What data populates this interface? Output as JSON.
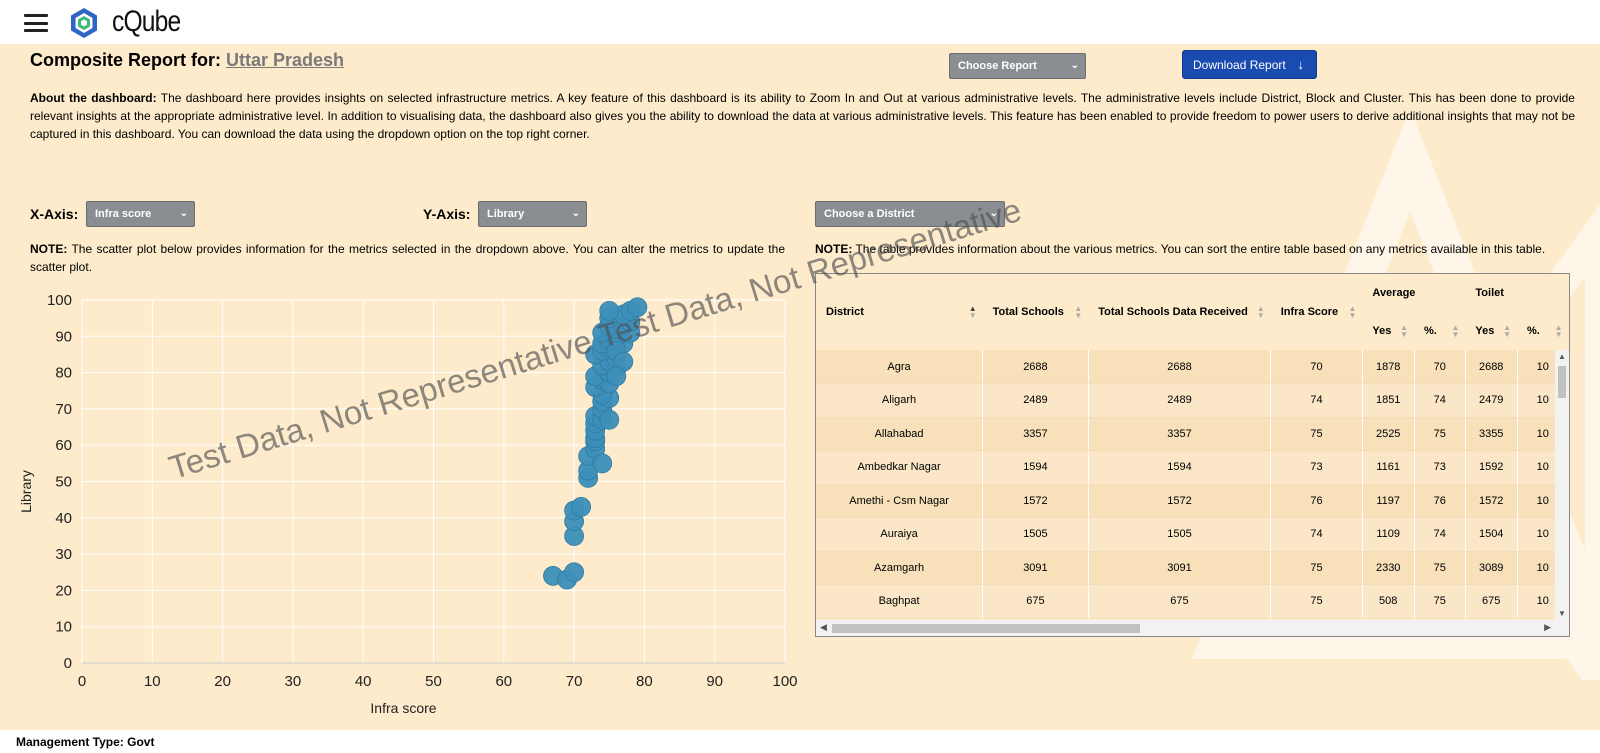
{
  "app": {
    "brand": "cQube"
  },
  "header": {
    "title_prefix": "Composite Report for:",
    "state": "Uttar Pradesh",
    "choose_report": "Choose Report",
    "download_label": "Download Report"
  },
  "about": {
    "label": "About the dashboard:",
    "text": "The dashboard here provides insights on selected infrastructure metrics. A key feature of this dashboard is its ability to Zoom In and Out at various administrative levels. The administrative levels include District, Block and Cluster. This has been done to provide relevant insights at the appropriate administrative level. In addition to visualising data, the dashboard also gives you the ability to download the data at various administrative levels. This feature has been enabled to provide freedom to power users to derive additional insights that may not be captured in this dashboard. You can download the data using the dropdown option on the top right corner."
  },
  "controls": {
    "x_axis_label": "X-Axis:",
    "x_axis_value": "Infra score",
    "y_axis_label": "Y-Axis:",
    "y_axis_value": "Library",
    "district_select": "Choose a District"
  },
  "notes": {
    "note_label": "NOTE:",
    "scatter_note": "The scatter plot below provides information for the metrics selected in the dropdown above. You can alter the metrics to update the scatter plot.",
    "table_note": "The table provides information about the various metrics. You can sort the entire table based on any metrics available in this table."
  },
  "watermark": "Test Data, Not Representative  Test Data, Not Representative",
  "chart_data": {
    "type": "scatter",
    "xlabel": "Infra score",
    "ylabel": "Library",
    "xlim": [
      0,
      100
    ],
    "ylim": [
      0,
      100
    ],
    "xticks": [
      0,
      10,
      20,
      30,
      40,
      50,
      60,
      70,
      80,
      90,
      100
    ],
    "yticks": [
      0,
      10,
      20,
      30,
      40,
      50,
      60,
      70,
      80,
      90,
      100
    ],
    "grid": true,
    "color": "#3d8fb8",
    "points": [
      [
        67,
        24
      ],
      [
        69,
        23
      ],
      [
        70,
        25
      ],
      [
        70,
        35
      ],
      [
        70,
        39
      ],
      [
        70,
        42
      ],
      [
        71,
        43
      ],
      [
        72,
        51
      ],
      [
        72,
        53
      ],
      [
        72,
        57
      ],
      [
        73,
        59
      ],
      [
        73,
        61
      ],
      [
        73,
        62
      ],
      [
        74,
        55
      ],
      [
        73,
        64
      ],
      [
        73,
        66
      ],
      [
        73,
        68
      ],
      [
        74,
        67
      ],
      [
        74,
        70
      ],
      [
        75,
        67
      ],
      [
        74,
        72
      ],
      [
        75,
        73
      ],
      [
        74,
        74
      ],
      [
        73,
        76
      ],
      [
        74,
        78
      ],
      [
        75,
        77
      ],
      [
        73,
        79
      ],
      [
        75,
        80
      ],
      [
        76,
        81
      ],
      [
        74,
        82
      ],
      [
        75,
        83
      ],
      [
        76,
        84
      ],
      [
        73,
        85
      ],
      [
        74,
        86
      ],
      [
        75,
        87
      ],
      [
        76,
        88
      ],
      [
        74,
        88
      ],
      [
        77,
        88
      ],
      [
        75,
        89
      ],
      [
        76,
        90
      ],
      [
        74,
        91
      ],
      [
        76,
        92
      ],
      [
        78,
        91
      ],
      [
        75,
        93
      ],
      [
        77,
        93
      ],
      [
        78,
        94
      ],
      [
        75,
        95
      ],
      [
        77,
        96
      ],
      [
        78,
        97
      ],
      [
        79,
        98
      ],
      [
        75,
        97
      ],
      [
        76,
        86
      ],
      [
        77,
        83
      ],
      [
        76,
        79
      ]
    ]
  },
  "table": {
    "headers": {
      "district": "District",
      "total_schools": "Total Schools",
      "total_received": "Total Schools Data Received",
      "infra_score": "Infra Score",
      "average": "Average",
      "toilet": "Toilet",
      "yes": "Yes",
      "pct": "%."
    },
    "rows": [
      [
        "Agra",
        "2688",
        "2688",
        "70",
        "1878",
        "70",
        "2688",
        "10"
      ],
      [
        "Aligarh",
        "2489",
        "2489",
        "74",
        "1851",
        "74",
        "2479",
        "10"
      ],
      [
        "Allahabad",
        "3357",
        "3357",
        "75",
        "2525",
        "75",
        "3355",
        "10"
      ],
      [
        "Ambedkar Nagar",
        "1594",
        "1594",
        "73",
        "1161",
        "73",
        "1592",
        "10"
      ],
      [
        "Amethi - Csm Nagar",
        "1572",
        "1572",
        "76",
        "1197",
        "76",
        "1572",
        "10"
      ],
      [
        "Auraiya",
        "1505",
        "1505",
        "74",
        "1109",
        "74",
        "1504",
        "10"
      ],
      [
        "Azamgarh",
        "3091",
        "3091",
        "75",
        "2330",
        "75",
        "3089",
        "10"
      ],
      [
        "Baghpat",
        "675",
        "675",
        "75",
        "508",
        "75",
        "675",
        "10"
      ]
    ]
  },
  "footer": {
    "management": "Management Type: Govt"
  }
}
